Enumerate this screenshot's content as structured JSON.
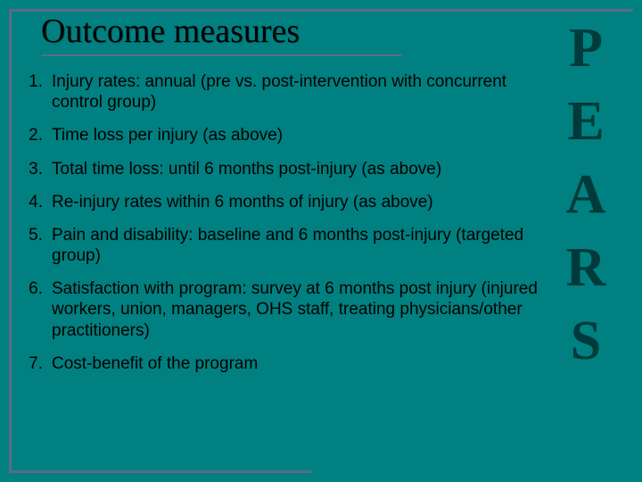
{
  "colors": {
    "background": "#008080",
    "accent_line": "#5a6b8c",
    "text": "#000000",
    "watermark": "rgba(0,0,0,0.55)"
  },
  "title": "Outcome measures",
  "watermark": "PEARS",
  "items": [
    {
      "num": "1.",
      "text": "Injury rates: annual (pre vs. post-intervention with concurrent control group)"
    },
    {
      "num": "2.",
      "text": "Time loss per injury (as above)"
    },
    {
      "num": "3.",
      "text": "Total time loss: until 6 months post-injury (as above)"
    },
    {
      "num": "4.",
      "text": "Re-injury rates within 6 months of injury (as above)"
    },
    {
      "num": "5.",
      "text": "Pain and disability:  baseline and 6 months post-injury (targeted group)"
    },
    {
      "num": "6.",
      "text": "Satisfaction with program: survey at 6 months post injury (injured workers, union, managers, OHS staff, treating physicians/other practitioners)"
    },
    {
      "num": "7.",
      "text": "Cost-benefit of the program"
    }
  ]
}
